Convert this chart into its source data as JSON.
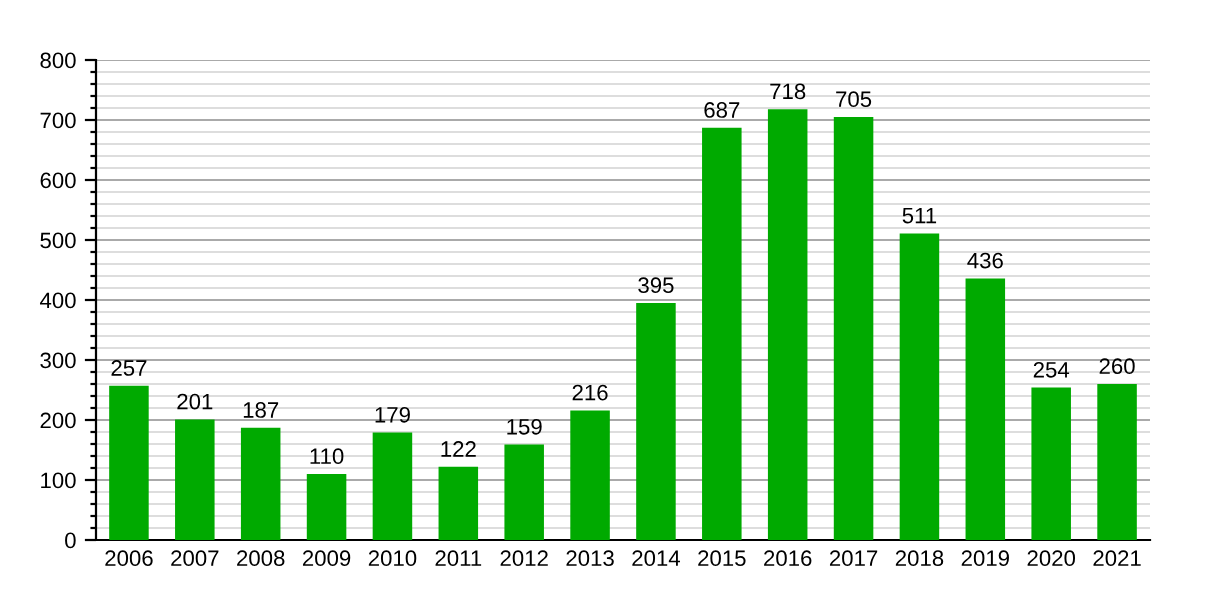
{
  "chart_data": {
    "type": "bar",
    "categories": [
      "2006",
      "2007",
      "2008",
      "2009",
      "2010",
      "2011",
      "2012",
      "2013",
      "2014",
      "2015",
      "2016",
      "2017",
      "2018",
      "2019",
      "2020",
      "2021"
    ],
    "values": [
      257,
      201,
      187,
      110,
      179,
      122,
      159,
      216,
      395,
      687,
      718,
      705,
      511,
      436,
      254,
      260
    ],
    "color": "#00aa00",
    "data_labels": true,
    "ylim": [
      0,
      800
    ],
    "yticks": [
      0,
      {
        "value": 20,
        "label": null
      },
      {
        "value": 40,
        "label": null
      },
      {
        "value": 60,
        "label": null
      },
      {
        "value": 80,
        "label": null
      },
      100,
      {
        "value": 120,
        "label": null
      },
      {
        "value": 140,
        "label": null
      },
      {
        "value": 160,
        "label": null
      },
      {
        "value": 180,
        "label": null
      },
      200,
      {
        "value": 220,
        "label": null
      },
      {
        "value": 240,
        "label": null
      },
      {
        "value": 260,
        "label": null
      },
      {
        "value": 280,
        "label": null
      },
      300,
      {
        "value": 320,
        "label": null
      },
      {
        "value": 340,
        "label": null
      },
      {
        "value": 360,
        "label": null
      },
      {
        "value": 380,
        "label": null
      },
      400,
      {
        "value": 420,
        "label": null
      },
      {
        "value": 440,
        "label": null
      },
      {
        "value": 460,
        "label": null
      },
      {
        "value": 480,
        "label": null
      },
      500,
      {
        "value": 520,
        "label": null
      },
      {
        "value": 540,
        "label": null
      },
      {
        "value": 560,
        "label": null
      },
      {
        "value": 580,
        "label": null
      },
      600,
      {
        "value": 620,
        "label": null
      },
      {
        "value": 640,
        "label": null
      },
      {
        "value": 660,
        "label": null
      },
      {
        "value": 680,
        "label": null
      },
      700,
      {
        "value": 720,
        "label": null
      },
      {
        "value": 740,
        "label": null
      },
      {
        "value": 760,
        "label": null
      },
      {
        "value": 780,
        "label": null
      },
      800
    ],
    "grid": "y"
  }
}
